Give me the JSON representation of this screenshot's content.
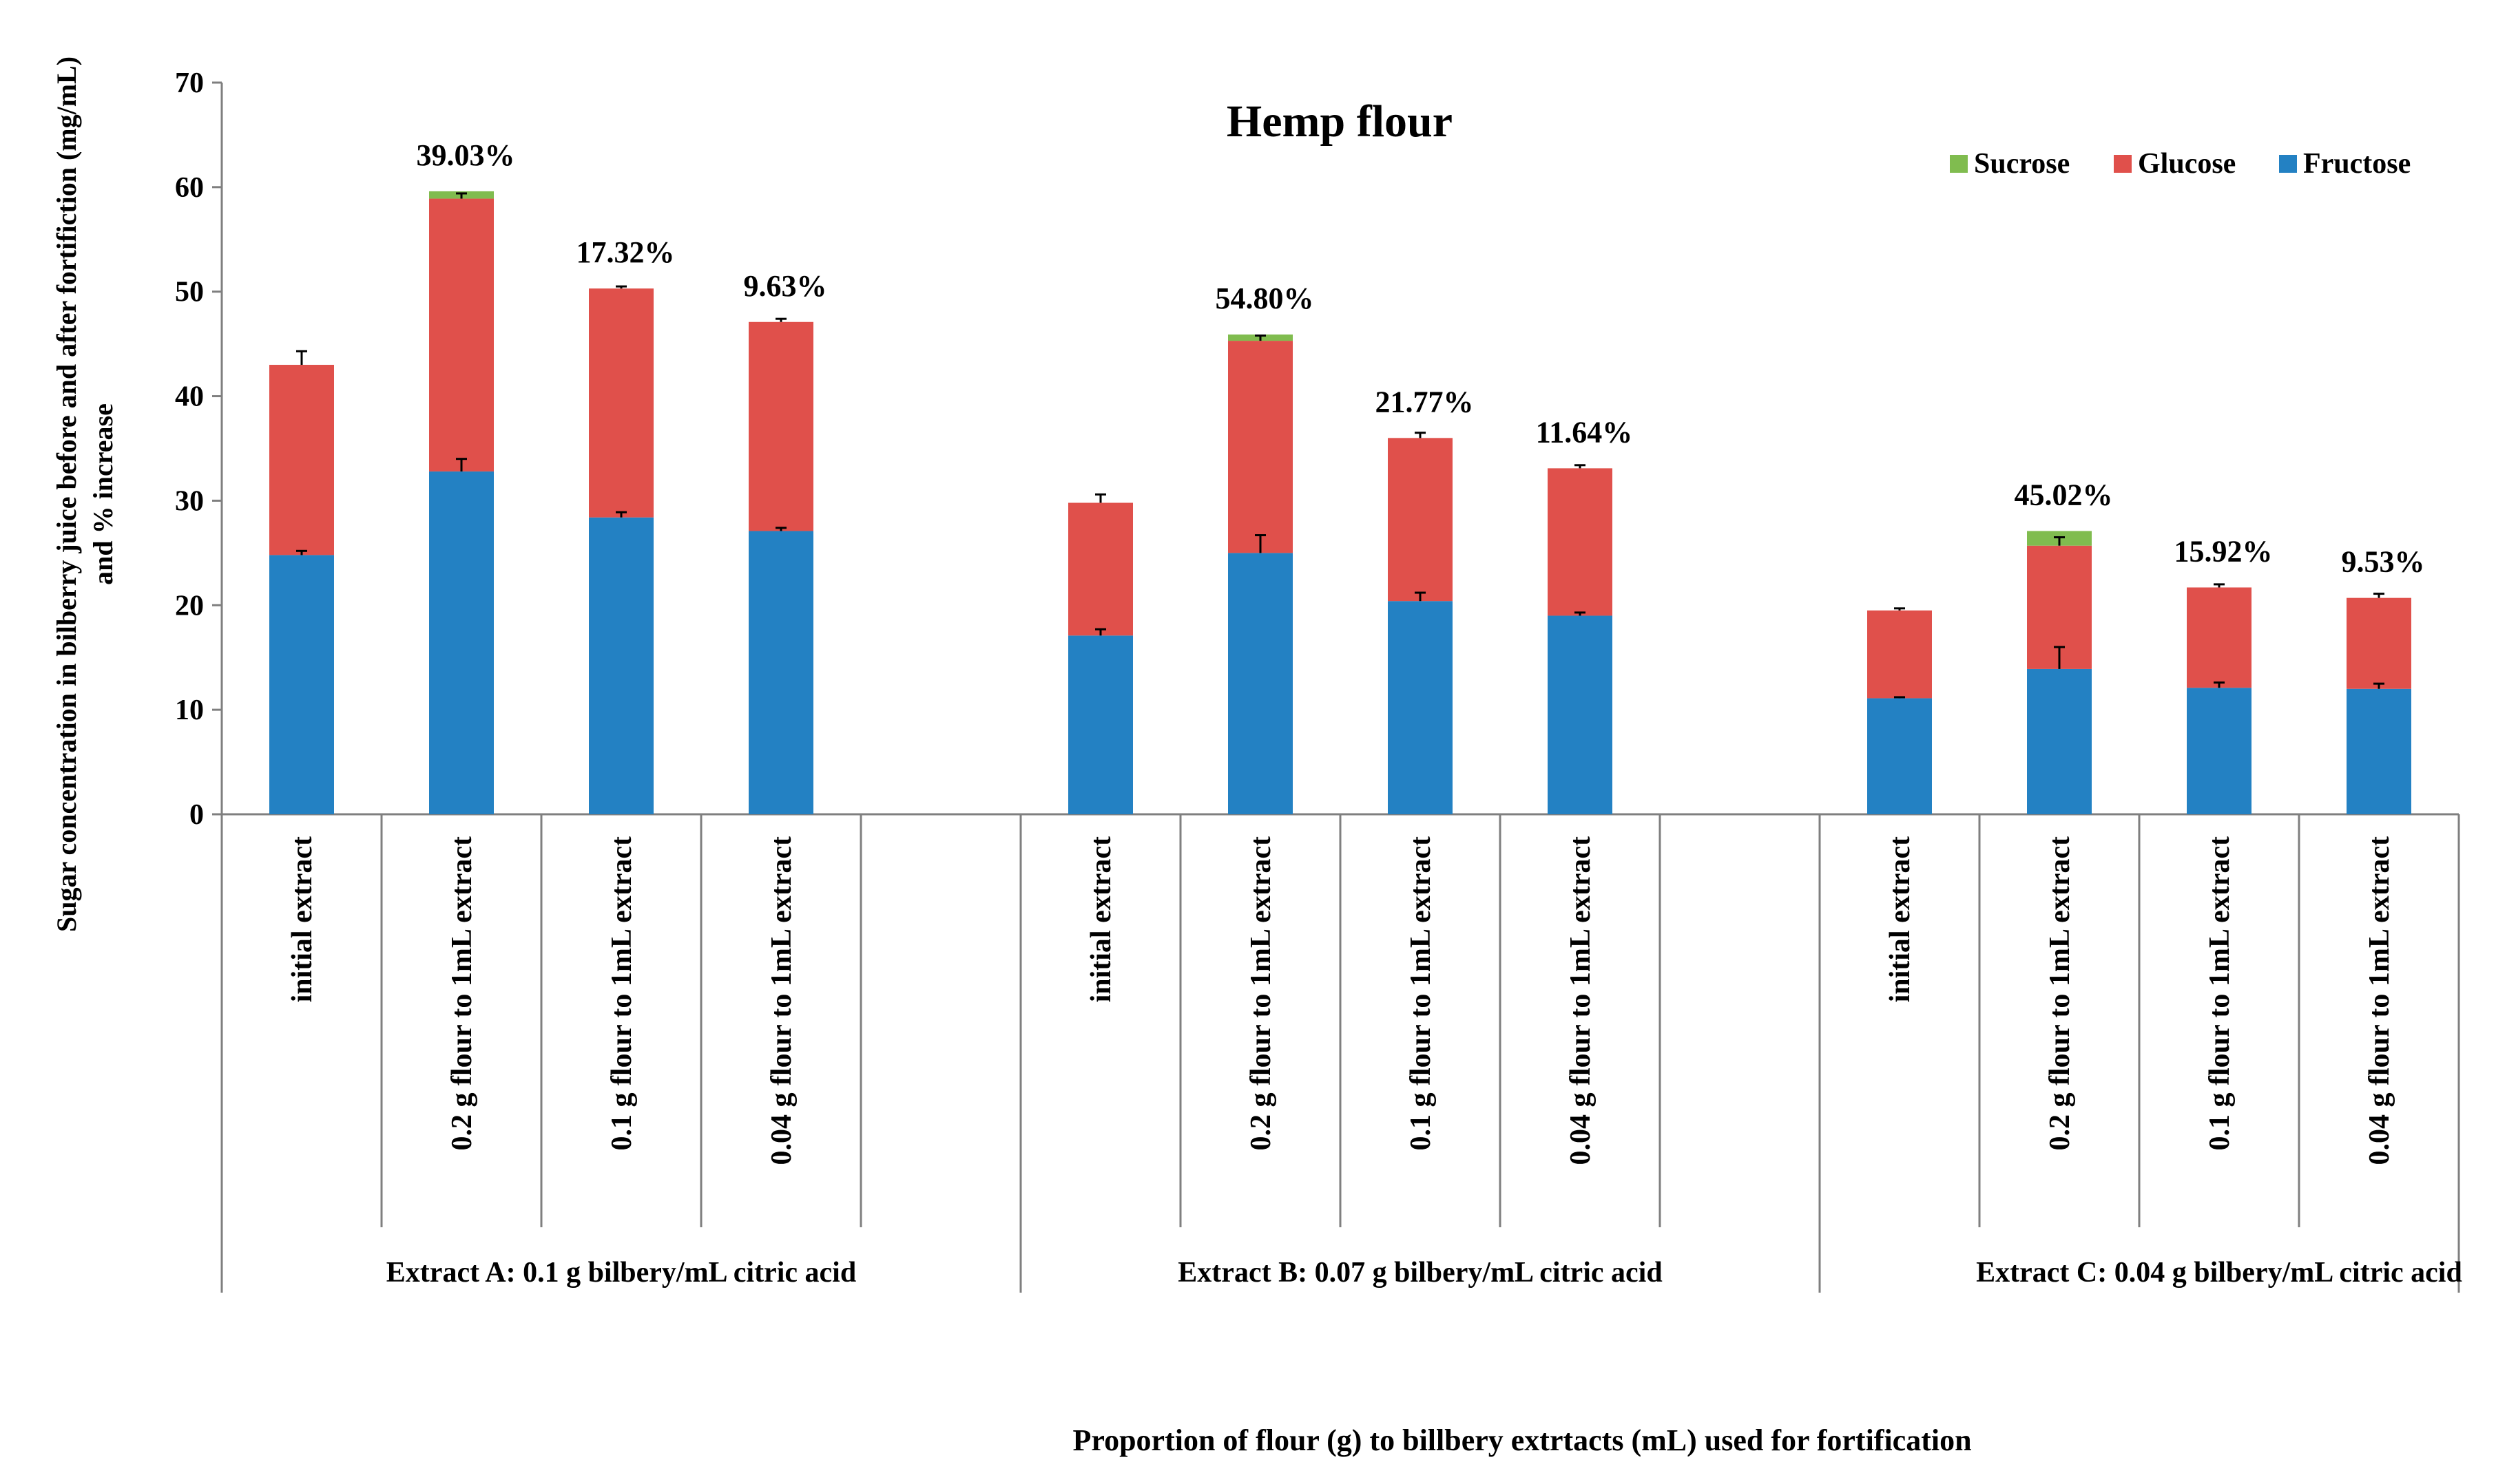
{
  "chart_data": {
    "type": "bar",
    "stacked": true,
    "title": "Hemp flour",
    "ylabel_line1": "Sugar concentration in  bilberry juice before and   after fortifiction (mg/mL)",
    "ylabel_line2": "and % increase",
    "xlabel": "Proportion of flour (g) to billbery extrtacts (mL) used for fortification",
    "ylim": [
      0,
      70
    ],
    "yticks": [
      0,
      10,
      20,
      30,
      40,
      50,
      60,
      70
    ],
    "legend": {
      "position": "top-right",
      "entries": [
        "Sucrose",
        "Glucose",
        "Fructose"
      ]
    },
    "colors": {
      "Fructose": "#2381c3",
      "Glucose": "#e0504b",
      "Sucrose": "#80bc4f"
    },
    "groups": [
      {
        "label": "Extract A: 0.1 g bilbery/mL citric acid",
        "categories": [
          "initial extract",
          "0.2 g flour to 1mL extract",
          "0.1 g flour to 1mL extract",
          "0.04 g flour to 1mL extract"
        ]
      },
      {
        "label": "Extract B: 0.07 g bilbery/mL citric acid",
        "categories": [
          "initial extract",
          "0.2 g flour to 1mL extract",
          "0.1 g flour to 1mL extract",
          "0.04 g flour to 1mL extract"
        ]
      },
      {
        "label": "Extract C: 0.04 g bilbery/mL citric acid",
        "categories": [
          "initial extract",
          "0.2 g flour to 1mL extract",
          "0.1 g flour to 1mL extract",
          "0.04 g flour to 1mL extract"
        ]
      }
    ],
    "series": [
      {
        "name": "Fructose",
        "values": [
          [
            24.8,
            32.8,
            28.4,
            27.1
          ],
          [
            17.1,
            25.0,
            20.4,
            19.0
          ],
          [
            11.1,
            13.9,
            12.1,
            12.0
          ]
        ],
        "errors": [
          [
            0.4,
            1.2,
            0.5,
            0.3
          ],
          [
            0.6,
            1.7,
            0.8,
            0.3
          ],
          [
            0.1,
            2.1,
            0.5,
            0.5
          ]
        ]
      },
      {
        "name": "Glucose",
        "values": [
          [
            18.2,
            26.1,
            21.9,
            20.0
          ],
          [
            12.7,
            20.3,
            15.6,
            14.1
          ],
          [
            8.4,
            11.8,
            9.6,
            8.7
          ]
        ],
        "errors": [
          [
            1.3,
            0.5,
            0.2,
            0.3
          ],
          [
            0.8,
            0.5,
            0.5,
            0.3
          ],
          [
            0.2,
            0.8,
            0.3,
            0.4
          ]
        ]
      },
      {
        "name": "Sucrose",
        "values": [
          [
            0,
            0.7,
            0,
            0
          ],
          [
            0,
            0.6,
            0,
            0
          ],
          [
            0,
            1.4,
            0,
            0
          ]
        ],
        "errors": [
          [
            0,
            0,
            0,
            0
          ],
          [
            0,
            0,
            0,
            0
          ],
          [
            0,
            0,
            0,
            0
          ]
        ]
      }
    ],
    "annotations": [
      [
        "",
        "39.03%",
        "17.32%",
        "9.63%"
      ],
      [
        "",
        "54.80%",
        "21.77%",
        "11.64%"
      ],
      [
        "",
        "45.02%",
        "15.92%",
        "9.53%"
      ]
    ]
  }
}
